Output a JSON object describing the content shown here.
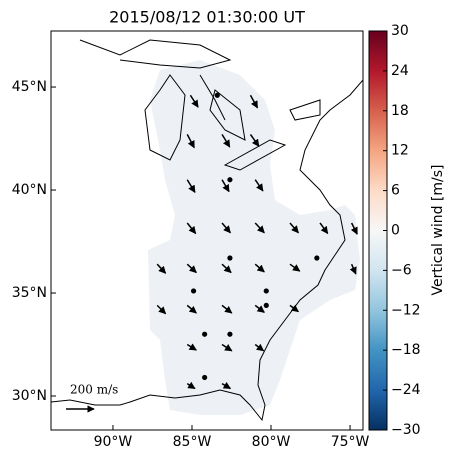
{
  "chart_data": {
    "type": "quiver-map",
    "title": "2015/08/12 01:30:00 UT",
    "xlim": [
      -93.92,
      -74.18
    ],
    "ylim": [
      28.35,
      47.72
    ],
    "xticks": [
      {
        "value": -90,
        "label": "90°W"
      },
      {
        "value": -85,
        "label": "85°W"
      },
      {
        "value": -80,
        "label": "80°W"
      },
      {
        "value": -75,
        "label": "75°W"
      }
    ],
    "yticks": [
      {
        "value": 30,
        "label": "30°N"
      },
      {
        "value": 35,
        "label": "35°N"
      },
      {
        "value": 40,
        "label": "40°N"
      },
      {
        "value": 45,
        "label": "45°N"
      }
    ],
    "vectors": {
      "lon": [
        -85.1,
        -81.3,
        -85.3,
        -83.1,
        -81.3,
        -85.3,
        -83.1,
        -81.0,
        -85.3,
        -83.1,
        -81.0,
        -78.8,
        -76.9,
        -74.9,
        -87.2,
        -85.3,
        -83.1,
        -81.0,
        -78.8,
        -74.9,
        -87.2,
        -85.3,
        -83.1,
        -81.0,
        -78.8,
        -85.3,
        -83.1,
        -81.0,
        -85.3,
        -83.1,
        -83.4,
        -82.6,
        -82.6,
        -84.9,
        -80.3,
        -80.3,
        -84.2,
        -82.6,
        -84.2,
        -77.1
      ],
      "lat": [
        44.6,
        44.6,
        42.7,
        42.7,
        42.7,
        40.5,
        40.5,
        40.5,
        38.4,
        38.4,
        38.4,
        38.4,
        38.4,
        38.4,
        36.4,
        36.4,
        36.4,
        36.4,
        36.4,
        36.4,
        34.4,
        34.4,
        34.4,
        34.4,
        34.4,
        32.5,
        32.5,
        32.5,
        30.6,
        30.6,
        44.6,
        40.5,
        36.7,
        35.1,
        35.1,
        34.4,
        33.0,
        33.0,
        30.9,
        36.7
      ],
      "u": [
        55,
        50,
        50,
        55,
        60,
        55,
        50,
        55,
        60,
        60,
        65,
        60,
        55,
        40,
        60,
        65,
        65,
        65,
        70,
        30,
        60,
        65,
        70,
        65,
        60,
        65,
        70,
        60,
        55,
        60,
        0,
        0,
        0,
        0,
        0,
        0,
        0,
        0,
        0,
        0
      ],
      "v": [
        -85,
        -90,
        -95,
        -90,
        -85,
        -90,
        -85,
        -80,
        -75,
        -70,
        -70,
        -70,
        -75,
        -80,
        -65,
        -60,
        -60,
        -55,
        -50,
        -70,
        -60,
        -55,
        -55,
        -50,
        -45,
        -40,
        -45,
        -45,
        -35,
        -35,
        0,
        0,
        0,
        0,
        0,
        0,
        0,
        0,
        0,
        0
      ]
    },
    "key": {
      "value": 200,
      "label": "200 m/s"
    },
    "colorbar": {
      "label": "Vertical wind [m/s]",
      "lim": [
        -30,
        30
      ],
      "ticks": [
        {
          "value": -30,
          "label": "−30"
        },
        {
          "value": -24,
          "label": "−24"
        },
        {
          "value": -18,
          "label": "−18"
        },
        {
          "value": -12,
          "label": "−12"
        },
        {
          "value": -6,
          "label": "−6"
        },
        0,
        6,
        12,
        18,
        24,
        30
      ]
    }
  }
}
